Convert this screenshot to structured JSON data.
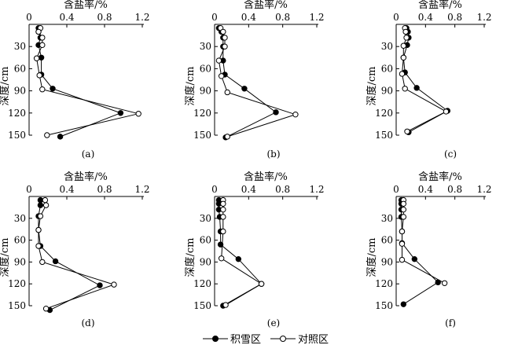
{
  "legend": {
    "snow_label": "积雪区",
    "control_label": "对照区"
  },
  "chart_data": [
    {
      "type": "line",
      "panel_label": "(a)",
      "xlabel": "含盐率/%",
      "ylabel": "深度/cm",
      "x_axis_position": "top",
      "y_axis_inverted": true,
      "xlim": [
        0,
        1.2
      ],
      "ylim": [
        0,
        150
      ],
      "x_ticks": [
        "0",
        "0.4",
        "0.8",
        "1.2"
      ],
      "y_ticks": [
        "30",
        "60",
        "90",
        "120",
        "150"
      ],
      "grid": false,
      "series": [
        {
          "name": "积雪区",
          "marker": "filled-circle",
          "points": [
            [
              0.1,
              5
            ],
            [
              0.1,
              10
            ],
            [
              0.12,
              18
            ],
            [
              0.1,
              28
            ],
            [
              0.13,
              45
            ],
            [
              0.13,
              68
            ],
            [
              0.25,
              87
            ],
            [
              0.97,
              120
            ],
            [
              0.33,
              152
            ]
          ]
        },
        {
          "name": "对照区",
          "marker": "open-circle",
          "points": [
            [
              0.12,
              5
            ],
            [
              0.1,
              10
            ],
            [
              0.14,
              18
            ],
            [
              0.14,
              28
            ],
            [
              0.08,
              46
            ],
            [
              0.11,
              69
            ],
            [
              0.14,
              88
            ],
            [
              1.16,
              121
            ],
            [
              0.19,
              150
            ]
          ]
        }
      ]
    },
    {
      "type": "line",
      "panel_label": "(b)",
      "xlabel": "含盐率/%",
      "ylabel": "深度/cm",
      "x_axis_position": "top",
      "y_axis_inverted": true,
      "xlim": [
        0,
        1.2
      ],
      "ylim": [
        0,
        150
      ],
      "x_ticks": [
        "0",
        "0.4",
        "0.8",
        "1.2"
      ],
      "y_ticks": [
        "30",
        "60",
        "90",
        "120",
        "150"
      ],
      "grid": false,
      "series": [
        {
          "name": "积雪区",
          "marker": "filled-circle",
          "points": [
            [
              0.05,
              5
            ],
            [
              0.08,
              10
            ],
            [
              0.1,
              18
            ],
            [
              0.1,
              30
            ],
            [
              0.1,
              49
            ],
            [
              0.12,
              68
            ],
            [
              0.35,
              87
            ],
            [
              0.72,
              119
            ],
            [
              0.13,
              153
            ]
          ]
        },
        {
          "name": "对照区",
          "marker": "open-circle",
          "points": [
            [
              0.07,
              5
            ],
            [
              0.1,
              10
            ],
            [
              0.12,
              18
            ],
            [
              0.12,
              30
            ],
            [
              0.05,
              49
            ],
            [
              0.08,
              70
            ],
            [
              0.15,
              92
            ],
            [
              0.95,
              122
            ],
            [
              0.15,
              152
            ]
          ]
        }
      ]
    },
    {
      "type": "line",
      "panel_label": "(c)",
      "xlabel": "含盐率/%",
      "ylabel": "深度/cm",
      "x_axis_position": "top",
      "y_axis_inverted": true,
      "xlim": [
        0,
        1.2
      ],
      "ylim": [
        0,
        150
      ],
      "x_ticks": [
        "0",
        "0.4",
        "0.8",
        "1.2"
      ],
      "y_ticks": [
        "30",
        "60",
        "90",
        "120",
        "150"
      ],
      "grid": false,
      "series": [
        {
          "name": "积雪区",
          "marker": "filled-circle",
          "points": [
            [
              0.14,
              5
            ],
            [
              0.16,
              10
            ],
            [
              0.17,
              18
            ],
            [
              0.15,
              28
            ],
            [
              0.1,
              45
            ],
            [
              0.12,
              65
            ],
            [
              0.28,
              86
            ],
            [
              0.7,
              117
            ],
            [
              0.17,
              146
            ]
          ]
        },
        {
          "name": "对照区",
          "marker": "open-circle",
          "points": [
            [
              0.12,
              5
            ],
            [
              0.13,
              10
            ],
            [
              0.14,
              18
            ],
            [
              0.1,
              29
            ],
            [
              0.1,
              45
            ],
            [
              0.08,
              67
            ],
            [
              0.12,
              87
            ],
            [
              0.68,
              118
            ],
            [
              0.15,
              145
            ]
          ]
        }
      ]
    },
    {
      "type": "line",
      "panel_label": "(d)",
      "xlabel": "含盐率/%",
      "ylabel": "深度/cm",
      "x_axis_position": "top",
      "y_axis_inverted": true,
      "xlim": [
        0,
        1.2
      ],
      "ylim": [
        0,
        150
      ],
      "x_ticks": [
        "0",
        "0.4",
        "0.8",
        "1.2"
      ],
      "y_ticks": [
        "30",
        "60",
        "90",
        "120",
        "150"
      ],
      "grid": false,
      "series": [
        {
          "name": "积雪区",
          "marker": "filled-circle",
          "points": [
            [
              0.12,
              5
            ],
            [
              0.12,
              12
            ],
            [
              0.1,
              27
            ],
            [
              0.1,
              46
            ],
            [
              0.12,
              68
            ],
            [
              0.28,
              89
            ],
            [
              0.75,
              122
            ],
            [
              0.22,
              156
            ]
          ]
        },
        {
          "name": "对照区",
          "marker": "open-circle",
          "points": [
            [
              0.17,
              5
            ],
            [
              0.18,
              12
            ],
            [
              0.12,
              27
            ],
            [
              0.1,
              46
            ],
            [
              0.1,
              68
            ],
            [
              0.14,
              90
            ],
            [
              0.9,
              121
            ],
            [
              0.18,
              154
            ]
          ]
        }
      ]
    },
    {
      "type": "line",
      "panel_label": "(e)",
      "xlabel": "含盐率/%",
      "ylabel": "深度/cm",
      "x_axis_position": "top",
      "y_axis_inverted": true,
      "xlim": [
        0,
        1.2
      ],
      "ylim": [
        0,
        150
      ],
      "x_ticks": [
        "0",
        "0.4",
        "0.8",
        "1.2"
      ],
      "y_ticks": [
        "30",
        "60",
        "90",
        "120",
        "150"
      ],
      "grid": false,
      "series": [
        {
          "name": "积雪区",
          "marker": "filled-circle",
          "points": [
            [
              0.05,
              5
            ],
            [
              0.05,
              10
            ],
            [
              0.05,
              18
            ],
            [
              0.06,
              28
            ],
            [
              0.07,
              48
            ],
            [
              0.07,
              66
            ],
            [
              0.28,
              86
            ],
            [
              0.55,
              120
            ],
            [
              0.1,
              150
            ]
          ]
        },
        {
          "name": "对照区",
          "marker": "open-circle",
          "points": [
            [
              0.1,
              5
            ],
            [
              0.1,
              10
            ],
            [
              0.1,
              18
            ],
            [
              0.1,
              28
            ],
            [
              0.1,
              48
            ],
            [
              0.08,
              85
            ],
            [
              0.55,
              120
            ],
            [
              0.13,
              149
            ]
          ]
        }
      ]
    },
    {
      "type": "line",
      "panel_label": "(f)",
      "xlabel": "含盐率/%",
      "ylabel": "深度/cm",
      "x_axis_position": "top",
      "y_axis_inverted": true,
      "xlim": [
        0,
        1.2
      ],
      "ylim": [
        0,
        150
      ],
      "x_ticks": [
        "0",
        "0.4",
        "0.8",
        "1.2"
      ],
      "y_ticks": [
        "30",
        "60",
        "90",
        "120",
        "150"
      ],
      "grid": false,
      "series": [
        {
          "name": "积雪区",
          "marker": "filled-circle",
          "points": [
            [
              0.07,
              5
            ],
            [
              0.07,
              10
            ],
            [
              0.07,
              18
            ],
            [
              0.07,
              28
            ],
            [
              0.08,
              48
            ],
            [
              0.08,
              64
            ],
            [
              0.25,
              86
            ],
            [
              0.57,
              118
            ],
            [
              0.1,
              148
            ]
          ]
        },
        {
          "name": "对照区",
          "marker": "open-circle",
          "points": [
            [
              0.1,
              5
            ],
            [
              0.1,
              10
            ],
            [
              0.1,
              18
            ],
            [
              0.1,
              28
            ],
            [
              0.08,
              48
            ],
            [
              0.08,
              65
            ],
            [
              0.08,
              87
            ],
            [
              0.66,
              119
            ]
          ]
        }
      ]
    }
  ]
}
